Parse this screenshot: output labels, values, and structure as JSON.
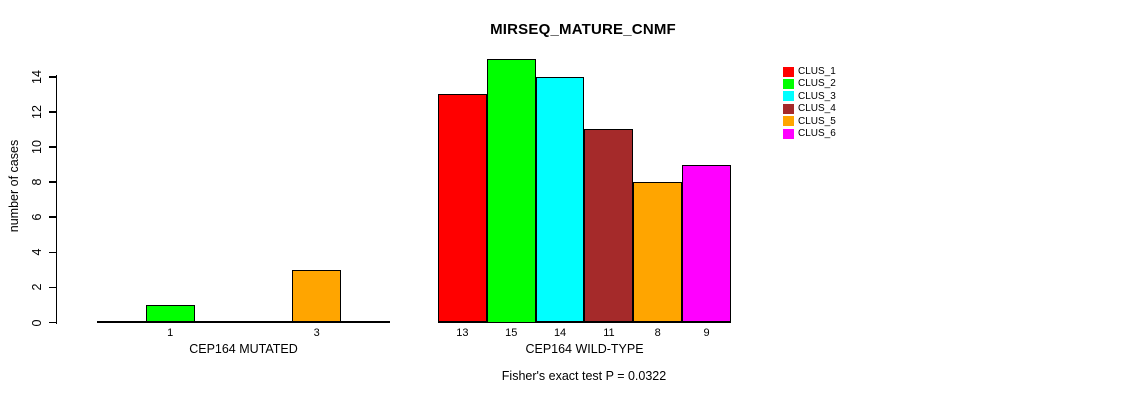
{
  "chart_data": {
    "type": "bar",
    "title": "MIRSEQ_MATURE_CNMF",
    "ylabel": "number of cases",
    "ylim": [
      0,
      15
    ],
    "yticks": [
      0,
      2,
      4,
      6,
      8,
      10,
      12,
      14
    ],
    "grid": false,
    "legend_position": "right-outside",
    "annotation": "Fisher's exact test P = 0.0322",
    "legend": [
      {
        "name": "CLUS_1",
        "color": "#FF0000"
      },
      {
        "name": "CLUS_2",
        "color": "#00FF00"
      },
      {
        "name": "CLUS_3",
        "color": "#00FFFF"
      },
      {
        "name": "CLUS_4",
        "color": "#A52A2A"
      },
      {
        "name": "CLUS_5",
        "color": "#FFA500"
      },
      {
        "name": "CLUS_6",
        "color": "#FF00FF"
      }
    ],
    "groups": [
      {
        "label": "CEP164 MUTATED",
        "values": [
          0,
          1,
          0,
          0,
          3,
          0
        ]
      },
      {
        "label": "CEP164 WILD-TYPE",
        "values": [
          13,
          15,
          14,
          11,
          8,
          9
        ]
      }
    ],
    "bar_value_labels_shown": "nonzero-only"
  }
}
